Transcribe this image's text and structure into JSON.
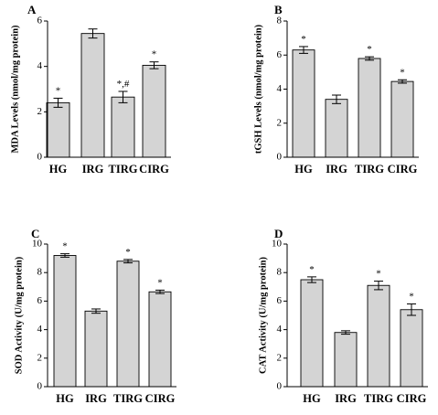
{
  "chart_data": [
    {
      "type": "bar",
      "panel": "A",
      "ylabel": "MDA Levels (nmol/mg protein)",
      "categories": [
        "HG",
        "IRG",
        "TIRG",
        "CIRG"
      ],
      "values": [
        2.4,
        5.45,
        2.65,
        4.05
      ],
      "errors": [
        0.2,
        0.2,
        0.25,
        0.15
      ],
      "annotations": [
        "*",
        "",
        "*,#",
        "*"
      ],
      "ylim": [
        0,
        6
      ],
      "yticks": [
        "0",
        "2",
        "4",
        "6"
      ]
    },
    {
      "type": "bar",
      "panel": "B",
      "ylabel": "tGSH Levels (nmol/mg protein)",
      "categories": [
        "HG",
        "IRG",
        "TIRG",
        "CIRG"
      ],
      "values": [
        6.3,
        3.4,
        5.8,
        4.45
      ],
      "errors": [
        0.2,
        0.25,
        0.1,
        0.1
      ],
      "annotations": [
        "*",
        "",
        "*",
        "*"
      ],
      "ylim": [
        0,
        8
      ],
      "yticks": [
        "0",
        "2",
        "4",
        "6",
        "8"
      ]
    },
    {
      "type": "bar",
      "panel": "C",
      "ylabel": "SOD Activity (U/mg protein)",
      "categories": [
        "HG",
        "IRG",
        "TIRG",
        "CIRG"
      ],
      "values": [
        9.2,
        5.3,
        8.8,
        6.65
      ],
      "errors": [
        0.12,
        0.15,
        0.12,
        0.12
      ],
      "annotations": [
        "*",
        "",
        "*",
        "*"
      ],
      "ylim": [
        0,
        10
      ],
      "yticks": [
        "0",
        "2",
        "4",
        "6",
        "8",
        "10"
      ]
    },
    {
      "type": "bar",
      "panel": "D",
      "ylabel": "CAT Activity (U/mg protein)",
      "categories": [
        "HG",
        "IRG",
        "TIRG",
        "CIRG"
      ],
      "values": [
        7.5,
        3.8,
        7.1,
        5.4
      ],
      "errors": [
        0.2,
        0.12,
        0.3,
        0.4
      ],
      "annotations": [
        "*",
        "",
        "*",
        "*"
      ],
      "ylim": [
        0,
        10
      ],
      "yticks": [
        "0",
        "2",
        "4",
        "6",
        "8",
        "10"
      ]
    }
  ]
}
